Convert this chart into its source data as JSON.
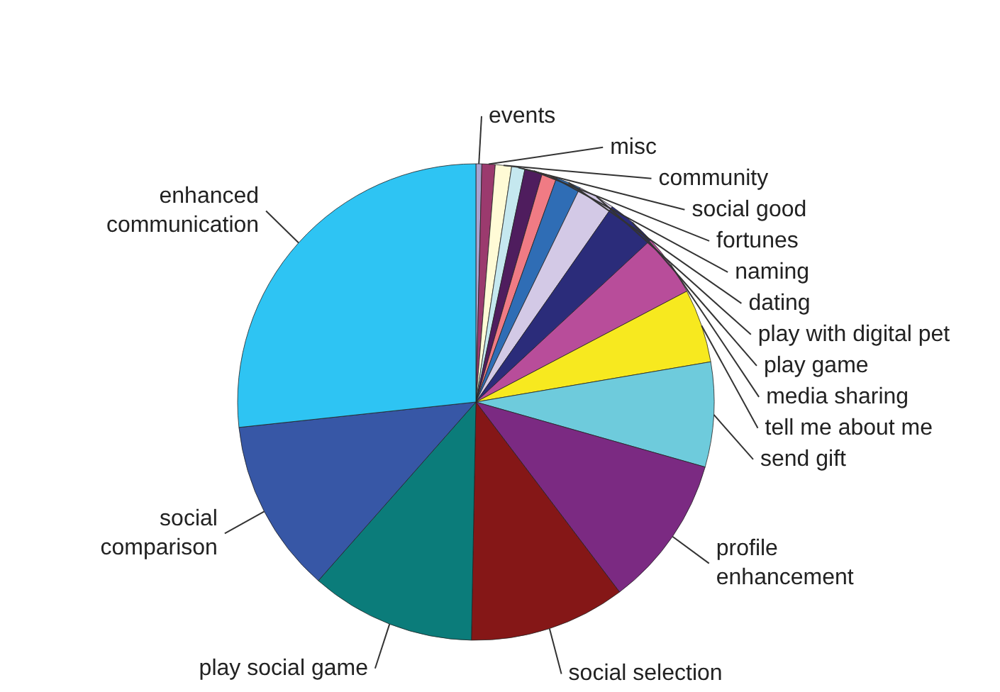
{
  "chart_data": {
    "type": "pie",
    "categories": [
      "events",
      "misc",
      "community",
      "social good",
      "fortunes",
      "naming",
      "dating",
      "play with digital pet",
      "play game",
      "media sharing",
      "tell me about me",
      "send gift",
      "profile\nenhancement",
      "social selection",
      "play social game",
      "social\ncomparison",
      "enhanced\ncommunication"
    ],
    "values": [
      0.4,
      0.9,
      1.1,
      0.9,
      1.2,
      1.0,
      1.7,
      2.5,
      3.4,
      4.2,
      5.0,
      7.1,
      10.3,
      10.6,
      11.2,
      11.8,
      26.7
    ],
    "colors": [
      "#a9a3d0",
      "#9b3a6e",
      "#fffbd6",
      "#c5e8ef",
      "#4f1d5e",
      "#f07b84",
      "#2f6db5",
      "#d3c9e6",
      "#2b2c7a",
      "#b84d9a",
      "#f7e91f",
      "#6ecbdc",
      "#7b2a82",
      "#851717",
      "#0b7c7a",
      "#3757a6",
      "#2ec4f3"
    ]
  }
}
